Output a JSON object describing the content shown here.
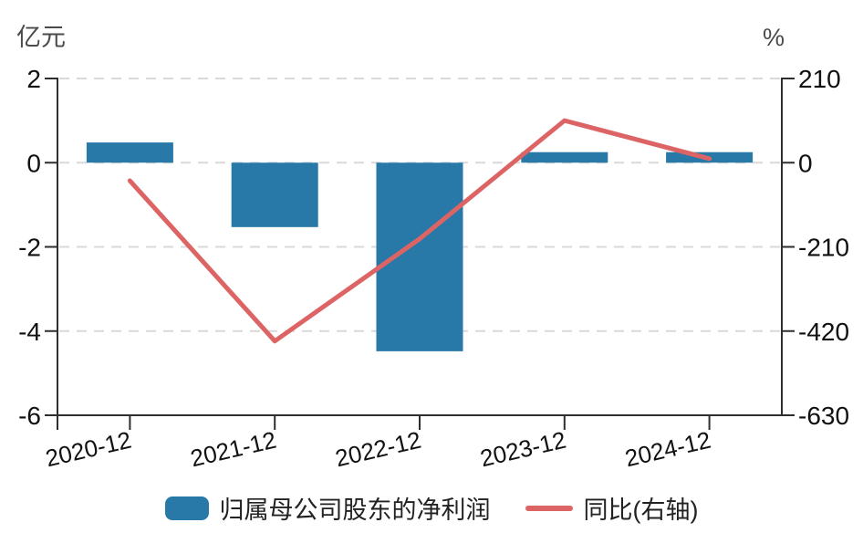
{
  "chart_data": {
    "type": "bar",
    "subtype": "bar+line dual-axis combo",
    "categories": [
      "2020-12",
      "2021-12",
      "2022-12",
      "2023-12",
      "2024-12"
    ],
    "series": [
      {
        "name": "归属母公司股东的净利润",
        "type": "bar",
        "axis": "left",
        "unit": "亿元",
        "color": "#2979a8",
        "values": [
          0.48,
          -1.53,
          -4.48,
          0.25,
          0.25
        ]
      },
      {
        "name": "同比(右轴)",
        "type": "line",
        "axis": "right",
        "unit": "%",
        "color": "#dd6464",
        "values": [
          -45,
          -445,
          -190,
          105,
          10
        ]
      }
    ],
    "left_axis": {
      "label": "亿元",
      "min": -6,
      "max": 2,
      "tick_values": [
        2,
        0,
        -2,
        -4,
        -6
      ],
      "tick_labels": [
        "2",
        "0",
        "-2",
        "-4",
        "-6"
      ]
    },
    "right_axis": {
      "label": "%",
      "min": -630,
      "max": 210,
      "tick_values": [
        210,
        0,
        -210,
        -420,
        -630
      ],
      "tick_labels": [
        "210",
        "0",
        "-210",
        "-420",
        "-630"
      ]
    },
    "grid": true,
    "gridline_style": "dashed",
    "legend_position": "bottom",
    "title": ""
  },
  "legend": {
    "items": [
      {
        "label": "归属母公司股东的净利润",
        "swatch": "bar"
      },
      {
        "label": "同比(右轴)",
        "swatch": "line"
      }
    ]
  },
  "colors": {
    "bar": "#2979a8",
    "line": "#dd6464",
    "grid": "#d9d9d9",
    "axis": "#2e2e2e",
    "text": "#111111",
    "unit_text": "#4a4a4a"
  }
}
